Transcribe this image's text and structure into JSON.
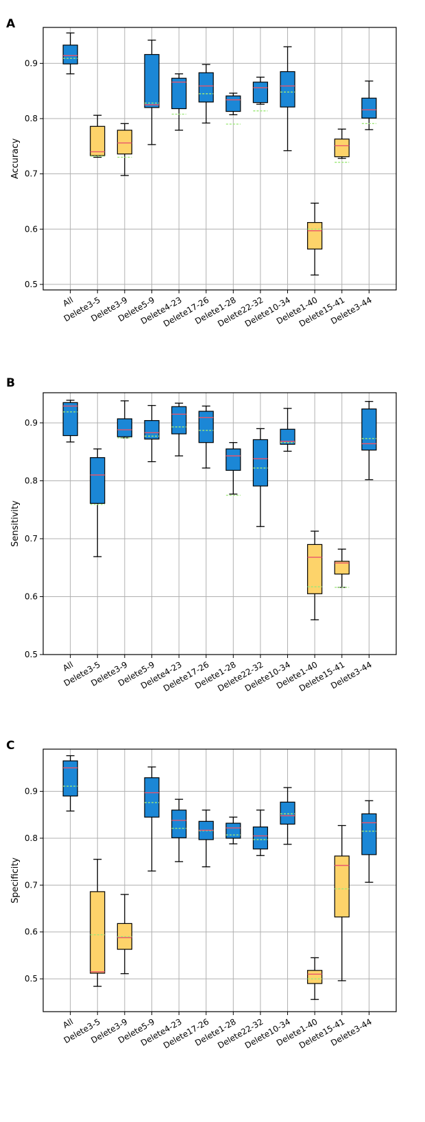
{
  "chart_data": [
    {
      "panel": "A",
      "type": "box",
      "ylabel": "Accuracy",
      "ylim": [
        0.49,
        0.965
      ],
      "yticks": [
        0.5,
        0.6,
        0.7,
        0.8,
        0.9
      ],
      "ytick_labels": [
        "0.5",
        "0.6",
        "0.7",
        "0.8",
        "0.9"
      ],
      "categories": [
        "All",
        "Delete3-5",
        "Delete3-9",
        "Delete5-9",
        "Delete4-23",
        "Delete17-26",
        "Delete1-28",
        "Delete22-32",
        "Delete10-34",
        "Delete1-40",
        "Delete15-41",
        "Delete3-44"
      ],
      "boxes": [
        {
          "whislo": 0.881,
          "q1": 0.899,
          "med": 0.914,
          "mean": 0.909,
          "q3": 0.933,
          "whishi": 0.955,
          "color": "blue"
        },
        {
          "whislo": 0.73,
          "q1": 0.733,
          "med": 0.74,
          "mean": 0.732,
          "q3": 0.786,
          "whishi": 0.806,
          "color": "yellow"
        },
        {
          "whislo": 0.697,
          "q1": 0.736,
          "med": 0.756,
          "mean": 0.73,
          "q3": 0.779,
          "whishi": 0.791,
          "color": "yellow"
        },
        {
          "whislo": 0.753,
          "q1": 0.82,
          "med": 0.825,
          "mean": 0.828,
          "q3": 0.916,
          "whishi": 0.942,
          "color": "blue"
        },
        {
          "whislo": 0.779,
          "q1": 0.818,
          "med": 0.866,
          "mean": 0.808,
          "q3": 0.873,
          "whishi": 0.881,
          "color": "blue"
        },
        {
          "whislo": 0.792,
          "q1": 0.83,
          "med": 0.859,
          "mean": 0.845,
          "q3": 0.883,
          "whishi": 0.898,
          "color": "blue"
        },
        {
          "whislo": 0.807,
          "q1": 0.813,
          "med": 0.834,
          "mean": 0.79,
          "q3": 0.841,
          "whishi": 0.846,
          "color": "blue"
        },
        {
          "whislo": 0.826,
          "q1": 0.829,
          "med": 0.856,
          "mean": 0.814,
          "q3": 0.866,
          "whishi": 0.875,
          "color": "blue"
        },
        {
          "whislo": 0.742,
          "q1": 0.821,
          "med": 0.859,
          "mean": 0.848,
          "q3": 0.885,
          "whishi": 0.93,
          "color": "blue"
        },
        {
          "whislo": 0.517,
          "q1": 0.564,
          "med": 0.597,
          "mean": 0.6,
          "q3": 0.612,
          "whishi": 0.647,
          "color": "yellow"
        },
        {
          "whislo": 0.728,
          "q1": 0.731,
          "med": 0.751,
          "mean": 0.721,
          "q3": 0.763,
          "whishi": 0.781,
          "color": "yellow"
        },
        {
          "whislo": 0.78,
          "q1": 0.801,
          "med": 0.816,
          "mean": 0.791,
          "q3": 0.837,
          "whishi": 0.868,
          "color": "blue"
        }
      ]
    },
    {
      "panel": "B",
      "type": "box",
      "ylabel": "Sensitivity",
      "ylim": [
        0.5,
        0.952
      ],
      "yticks": [
        0.5,
        0.6,
        0.7,
        0.8,
        0.9
      ],
      "ytick_labels": [
        "0.5",
        "0.6",
        "0.7",
        "0.8",
        "0.9"
      ],
      "categories": [
        "All",
        "Delete3-5",
        "Delete3-9",
        "Delete5-9",
        "Delete4-23",
        "Delete17-26",
        "Delete1-28",
        "Delete22-32",
        "Delete10-34",
        "Delete1-40",
        "Delete15-41",
        "Delete3-44"
      ],
      "boxes": [
        {
          "whislo": 0.867,
          "q1": 0.878,
          "med": 0.929,
          "mean": 0.919,
          "q3": 0.935,
          "whishi": 0.939,
          "color": "blue"
        },
        {
          "whislo": 0.669,
          "q1": 0.761,
          "med": 0.81,
          "mean": 0.759,
          "q3": 0.84,
          "whishi": 0.855,
          "color": "blue"
        },
        {
          "whislo": 0.874,
          "q1": 0.876,
          "med": 0.888,
          "mean": 0.874,
          "q3": 0.907,
          "whishi": 0.938,
          "color": "blue"
        },
        {
          "whislo": 0.833,
          "q1": 0.872,
          "med": 0.883,
          "mean": 0.877,
          "q3": 0.904,
          "whishi": 0.93,
          "color": "blue"
        },
        {
          "whislo": 0.843,
          "q1": 0.881,
          "med": 0.915,
          "mean": 0.893,
          "q3": 0.928,
          "whishi": 0.934,
          "color": "blue"
        },
        {
          "whislo": 0.822,
          "q1": 0.866,
          "med": 0.909,
          "mean": 0.887,
          "q3": 0.92,
          "whishi": 0.929,
          "color": "blue"
        },
        {
          "whislo": 0.777,
          "q1": 0.818,
          "med": 0.843,
          "mean": 0.775,
          "q3": 0.855,
          "whishi": 0.866,
          "color": "blue"
        },
        {
          "whislo": 0.721,
          "q1": 0.791,
          "med": 0.838,
          "mean": 0.822,
          "q3": 0.871,
          "whishi": 0.89,
          "color": "blue"
        },
        {
          "whislo": 0.851,
          "q1": 0.863,
          "med": 0.868,
          "mean": 0.866,
          "q3": 0.889,
          "whishi": 0.925,
          "color": "blue"
        },
        {
          "whislo": 0.56,
          "q1": 0.605,
          "med": 0.668,
          "mean": 0.617,
          "q3": 0.69,
          "whishi": 0.713,
          "color": "yellow"
        },
        {
          "whislo": 0.616,
          "q1": 0.639,
          "med": 0.658,
          "mean": 0.616,
          "q3": 0.661,
          "whishi": 0.682,
          "color": "yellow"
        },
        {
          "whislo": 0.802,
          "q1": 0.853,
          "med": 0.864,
          "mean": 0.873,
          "q3": 0.924,
          "whishi": 0.937,
          "color": "blue"
        }
      ]
    },
    {
      "panel": "C",
      "type": "box",
      "ylabel": "Specificity",
      "ylim": [
        0.43,
        0.99
      ],
      "yticks": [
        0.5,
        0.6,
        0.7,
        0.8,
        0.9
      ],
      "ytick_labels": [
        "0.5",
        "0.6",
        "0.7",
        "0.8",
        "0.9"
      ],
      "categories": [
        "All",
        "Delete3-5",
        "Delete3-9",
        "Delete5-9",
        "Delete4-23",
        "Delete17-26",
        "Delete1-28",
        "Delete22-32",
        "Delete10-34",
        "Delete1-40",
        "Delete15-41",
        "Delete3-44"
      ],
      "boxes": [
        {
          "whislo": 0.858,
          "q1": 0.89,
          "med": 0.95,
          "mean": 0.911,
          "q3": 0.965,
          "whishi": 0.976,
          "color": "blue"
        },
        {
          "whislo": 0.484,
          "q1": 0.512,
          "med": 0.515,
          "mean": 0.594,
          "q3": 0.686,
          "whishi": 0.755,
          "color": "yellow"
        },
        {
          "whislo": 0.511,
          "q1": 0.563,
          "med": 0.588,
          "mean": 0.59,
          "q3": 0.618,
          "whishi": 0.68,
          "color": "yellow"
        },
        {
          "whislo": 0.73,
          "q1": 0.845,
          "med": 0.897,
          "mean": 0.876,
          "q3": 0.929,
          "whishi": 0.952,
          "color": "blue"
        },
        {
          "whislo": 0.75,
          "q1": 0.801,
          "med": 0.838,
          "mean": 0.821,
          "q3": 0.86,
          "whishi": 0.883,
          "color": "blue"
        },
        {
          "whislo": 0.739,
          "q1": 0.797,
          "med": 0.817,
          "mean": 0.816,
          "q3": 0.836,
          "whishi": 0.86,
          "color": "blue"
        },
        {
          "whislo": 0.788,
          "q1": 0.8,
          "med": 0.822,
          "mean": 0.807,
          "q3": 0.832,
          "whishi": 0.845,
          "color": "blue"
        },
        {
          "whislo": 0.763,
          "q1": 0.777,
          "med": 0.805,
          "mean": 0.797,
          "q3": 0.824,
          "whishi": 0.86,
          "color": "blue"
        },
        {
          "whislo": 0.787,
          "q1": 0.83,
          "med": 0.848,
          "mean": 0.852,
          "q3": 0.877,
          "whishi": 0.908,
          "color": "blue"
        },
        {
          "whislo": 0.456,
          "q1": 0.49,
          "med": 0.51,
          "mean": 0.5,
          "q3": 0.518,
          "whishi": 0.545,
          "color": "yellow"
        },
        {
          "whislo": 0.496,
          "q1": 0.632,
          "med": 0.742,
          "mean": 0.692,
          "q3": 0.762,
          "whishi": 0.827,
          "color": "yellow"
        },
        {
          "whislo": 0.706,
          "q1": 0.765,
          "med": 0.833,
          "mean": 0.815,
          "q3": 0.852,
          "whishi": 0.88,
          "color": "blue"
        }
      ]
    }
  ],
  "colors": {
    "box_blue": "#1b87d6",
    "box_yellow": "#fdd36a",
    "median_line": "#e8556c",
    "mean_line": "#9ee87a",
    "grid": "#b0b0b0",
    "axis": "#000000"
  }
}
